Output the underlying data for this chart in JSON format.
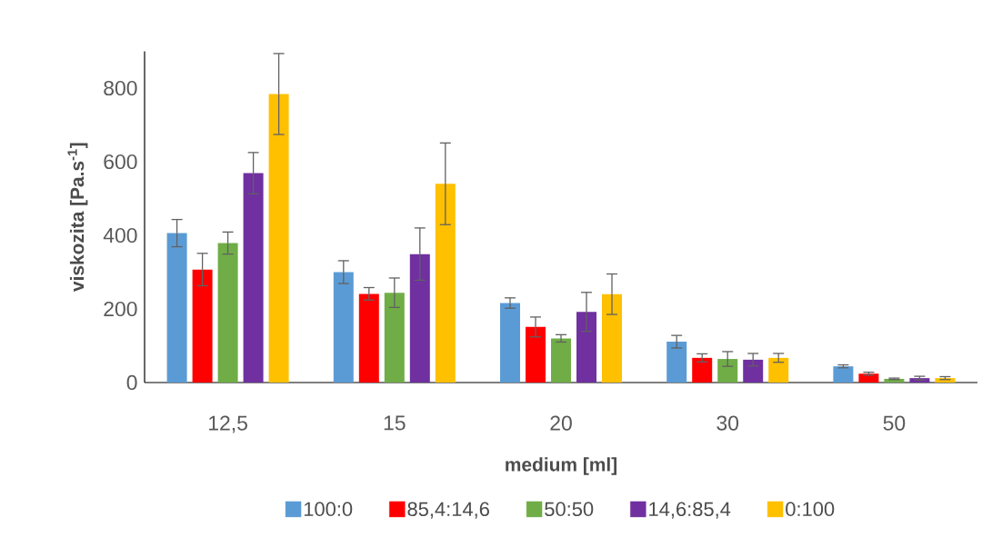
{
  "chart_data": {
    "type": "bar",
    "xlabel": "medium [ml]",
    "ylabel": "viskozita [Pa.s$^{-1}$]",
    "categories": [
      "12,5",
      "15",
      "20",
      "30",
      "50"
    ],
    "series": [
      {
        "name": "100:0",
        "color": "#5b9bd5",
        "values": [
          406,
          300,
          216,
          111,
          44
        ],
        "errors": [
          37,
          31,
          14,
          17,
          4
        ]
      },
      {
        "name": "85,4:14,6",
        "color": "#ff0000",
        "values": [
          307,
          241,
          151,
          67,
          24
        ],
        "errors": [
          44,
          17,
          27,
          11,
          4
        ]
      },
      {
        "name": "50:50",
        "color": "#70ad47",
        "values": [
          379,
          244,
          120,
          64,
          10
        ],
        "errors": [
          30,
          40,
          10,
          20,
          2
        ]
      },
      {
        "name": "14,6:85,4",
        "color": "#7030a0",
        "values": [
          569,
          349,
          192,
          62,
          12
        ],
        "errors": [
          56,
          71,
          53,
          17,
          5
        ]
      },
      {
        "name": "0:100",
        "color": "#ffc000",
        "values": [
          784,
          540,
          240,
          67,
          12
        ],
        "errors": [
          110,
          111,
          55,
          12,
          4
        ]
      }
    ],
    "ylim": [
      0,
      900
    ],
    "yticks": [
      0,
      200,
      400,
      600,
      800
    ],
    "legend": "bottom"
  }
}
